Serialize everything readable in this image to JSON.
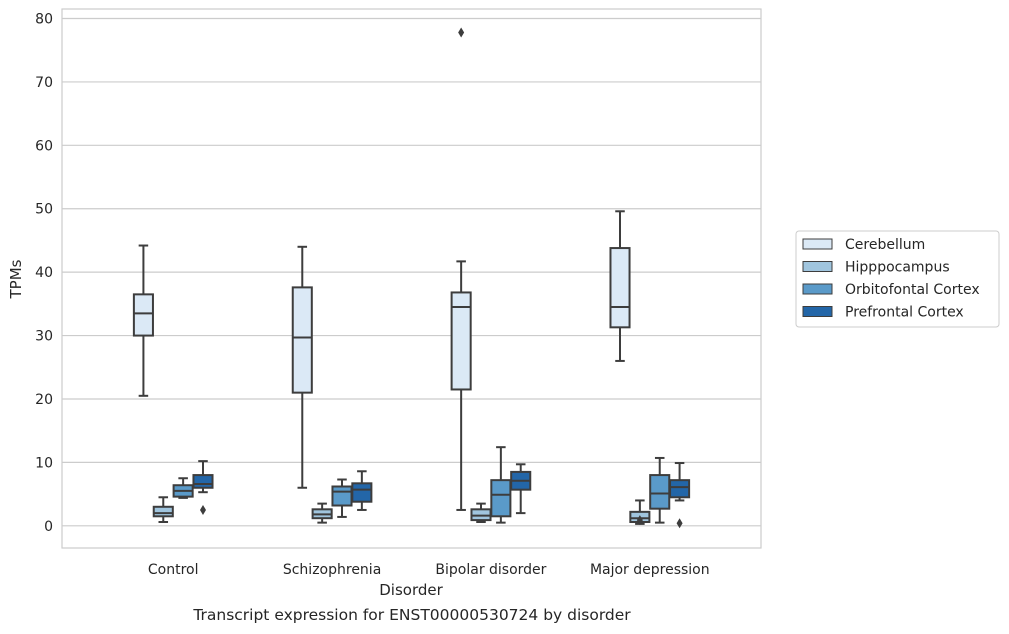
{
  "caption": "Transcript expression for ENST00000530724 by disorder",
  "chart_data": {
    "type": "boxplot",
    "xlabel": "Disorder",
    "ylabel": "TPMs",
    "ylim": [
      -3.5,
      81.5
    ],
    "yticks": [
      0,
      10,
      20,
      30,
      40,
      50,
      60,
      70,
      80
    ],
    "grid": true,
    "legend_position": "right",
    "categories": [
      "Control",
      "Schizophrenia",
      "Bipolar disorder",
      "Major depression"
    ],
    "series": [
      {
        "name": "Cerebellum",
        "color": "#dbe9f6",
        "boxes": [
          {
            "whisker_low": 20.5,
            "q1": 30.0,
            "median": 33.5,
            "q3": 36.5,
            "whisker_high": 44.2,
            "outliers": []
          },
          {
            "whisker_low": 6.0,
            "q1": 21.0,
            "median": 29.7,
            "q3": 37.6,
            "whisker_high": 44.0,
            "outliers": []
          },
          {
            "whisker_low": 2.5,
            "q1": 21.5,
            "median": 34.5,
            "q3": 36.8,
            "whisker_high": 41.7,
            "outliers": [
              77.8
            ]
          },
          {
            "whisker_low": 26.0,
            "q1": 31.3,
            "median": 34.5,
            "q3": 43.8,
            "whisker_high": 49.6,
            "outliers": []
          }
        ]
      },
      {
        "name": "Hipppocampus",
        "color": "#a0c5de",
        "boxes": [
          {
            "whisker_low": 0.6,
            "q1": 1.5,
            "median": 2.0,
            "q3": 3.0,
            "whisker_high": 4.5,
            "outliers": []
          },
          {
            "whisker_low": 0.5,
            "q1": 1.2,
            "median": 1.8,
            "q3": 2.6,
            "whisker_high": 3.5,
            "outliers": []
          },
          {
            "whisker_low": 0.6,
            "q1": 0.9,
            "median": 1.6,
            "q3": 2.6,
            "whisker_high": 3.5,
            "outliers": []
          },
          {
            "whisker_low": 0.3,
            "q1": 0.6,
            "median": 1.2,
            "q3": 2.2,
            "whisker_high": 4.0,
            "outliers": [
              0.9
            ]
          }
        ]
      },
      {
        "name": "Orbitofontal Cortex",
        "color": "#5a9ac9",
        "boxes": [
          {
            "whisker_low": 4.4,
            "q1": 4.6,
            "median": 5.5,
            "q3": 6.4,
            "whisker_high": 7.5,
            "outliers": []
          },
          {
            "whisker_low": 1.4,
            "q1": 3.2,
            "median": 5.4,
            "q3": 6.2,
            "whisker_high": 7.3,
            "outliers": []
          },
          {
            "whisker_low": 0.5,
            "q1": 1.5,
            "median": 4.9,
            "q3": 7.2,
            "whisker_high": 12.4,
            "outliers": []
          },
          {
            "whisker_low": 0.5,
            "q1": 2.7,
            "median": 5.1,
            "q3": 8.0,
            "whisker_high": 10.7,
            "outliers": []
          }
        ]
      },
      {
        "name": "Prefrontal Cortex",
        "color": "#2366a8",
        "boxes": [
          {
            "whisker_low": 5.3,
            "q1": 6.0,
            "median": 6.6,
            "q3": 8.0,
            "whisker_high": 10.2,
            "outliers": [
              2.5
            ]
          },
          {
            "whisker_low": 2.5,
            "q1": 3.8,
            "median": 5.7,
            "q3": 6.7,
            "whisker_high": 8.6,
            "outliers": []
          },
          {
            "whisker_low": 2.0,
            "q1": 5.7,
            "median": 7.1,
            "q3": 8.5,
            "whisker_high": 9.7,
            "outliers": []
          },
          {
            "whisker_low": 4.0,
            "q1": 4.5,
            "median": 6.1,
            "q3": 7.2,
            "whisker_high": 9.9,
            "outliers": [
              0.4
            ]
          }
        ]
      }
    ]
  }
}
